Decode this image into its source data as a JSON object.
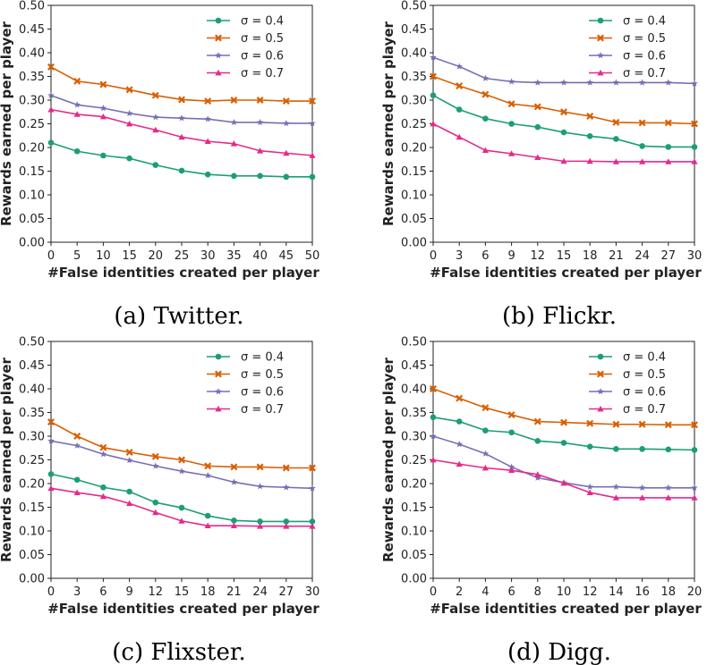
{
  "chart_data": [
    {
      "type": "line",
      "caption": "(a) Twitter.",
      "xlabel": "#False identities created per player",
      "ylabel": "Rewards earned per player",
      "x": [
        0,
        5,
        10,
        15,
        20,
        25,
        30,
        35,
        40,
        45,
        50
      ],
      "xticks": [
        0,
        5,
        10,
        15,
        20,
        25,
        30,
        35,
        40,
        45,
        50
      ],
      "xlim": [
        0,
        50
      ],
      "ylim": [
        0,
        0.5
      ],
      "yticks": [
        "0.00",
        "0.05",
        "0.10",
        "0.15",
        "0.20",
        "0.25",
        "0.30",
        "0.35",
        "0.40",
        "0.45",
        "0.50"
      ],
      "legend_position": "top-right",
      "series": [
        {
          "name": "σ = 0.4",
          "values": [
            0.21,
            0.192,
            0.183,
            0.177,
            0.163,
            0.151,
            0.143,
            0.14,
            0.14,
            0.138,
            0.138
          ]
        },
        {
          "name": "σ = 0.5",
          "values": [
            0.37,
            0.34,
            0.333,
            0.322,
            0.31,
            0.301,
            0.298,
            0.3,
            0.3,
            0.298,
            0.298
          ]
        },
        {
          "name": "σ = 0.6",
          "values": [
            0.31,
            0.29,
            0.283,
            0.272,
            0.264,
            0.262,
            0.26,
            0.253,
            0.253,
            0.251,
            0.251
          ]
        },
        {
          "name": "σ = 0.7",
          "values": [
            0.28,
            0.27,
            0.265,
            0.25,
            0.237,
            0.222,
            0.213,
            0.208,
            0.193,
            0.188,
            0.183
          ]
        }
      ]
    },
    {
      "type": "line",
      "caption": "(b) Flickr.",
      "xlabel": "#False identities created per player",
      "ylabel": "Rewards earned per player",
      "x": [
        0,
        3,
        6,
        9,
        12,
        15,
        18,
        21,
        24,
        27,
        30
      ],
      "xticks": [
        0,
        3,
        6,
        9,
        12,
        15,
        18,
        21,
        24,
        27,
        30
      ],
      "xlim": [
        0,
        30
      ],
      "ylim": [
        0,
        0.5
      ],
      "yticks": [
        "0.00",
        "0.05",
        "0.10",
        "0.15",
        "0.20",
        "0.25",
        "0.30",
        "0.35",
        "0.40",
        "0.45",
        "0.50"
      ],
      "legend_position": "top-right",
      "series": [
        {
          "name": "σ = 0.4",
          "values": [
            0.31,
            0.28,
            0.261,
            0.25,
            0.243,
            0.232,
            0.224,
            0.218,
            0.203,
            0.201,
            0.201
          ]
        },
        {
          "name": "σ = 0.5",
          "values": [
            0.35,
            0.33,
            0.312,
            0.292,
            0.286,
            0.275,
            0.266,
            0.253,
            0.252,
            0.252,
            0.25
          ]
        },
        {
          "name": "σ = 0.6",
          "values": [
            0.39,
            0.371,
            0.346,
            0.339,
            0.337,
            0.337,
            0.337,
            0.337,
            0.337,
            0.337,
            0.335
          ]
        },
        {
          "name": "σ = 0.7",
          "values": [
            0.25,
            0.222,
            0.194,
            0.187,
            0.179,
            0.171,
            0.171,
            0.17,
            0.17,
            0.17,
            0.17
          ]
        }
      ]
    },
    {
      "type": "line",
      "caption": "(c) Flixster.",
      "xlabel": "#False identities created per player",
      "ylabel": "Rewards earned per player",
      "x": [
        0,
        3,
        6,
        9,
        12,
        15,
        18,
        21,
        24,
        27,
        30
      ],
      "xticks": [
        0,
        3,
        6,
        9,
        12,
        15,
        18,
        21,
        24,
        27,
        30
      ],
      "xlim": [
        0,
        30
      ],
      "ylim": [
        0,
        0.5
      ],
      "yticks": [
        "0.00",
        "0.05",
        "0.10",
        "0.15",
        "0.20",
        "0.25",
        "0.30",
        "0.35",
        "0.40",
        "0.45",
        "0.50"
      ],
      "legend_position": "top-right",
      "series": [
        {
          "name": "σ = 0.4",
          "values": [
            0.22,
            0.208,
            0.192,
            0.183,
            0.16,
            0.149,
            0.132,
            0.122,
            0.12,
            0.12,
            0.12
          ]
        },
        {
          "name": "σ = 0.5",
          "values": [
            0.33,
            0.3,
            0.276,
            0.266,
            0.257,
            0.25,
            0.237,
            0.235,
            0.235,
            0.233,
            0.233
          ]
        },
        {
          "name": "σ = 0.6",
          "values": [
            0.29,
            0.28,
            0.262,
            0.249,
            0.237,
            0.226,
            0.217,
            0.203,
            0.194,
            0.192,
            0.19
          ]
        },
        {
          "name": "σ = 0.7",
          "values": [
            0.19,
            0.181,
            0.173,
            0.158,
            0.139,
            0.121,
            0.111,
            0.111,
            0.11,
            0.11,
            0.11
          ]
        }
      ]
    },
    {
      "type": "line",
      "caption": "(d) Digg.",
      "xlabel": "#False identities created per player",
      "ylabel": "Rewards earned per player",
      "x": [
        0,
        2,
        4,
        6,
        8,
        10,
        12,
        14,
        16,
        18,
        20
      ],
      "xticks": [
        0,
        2,
        4,
        6,
        8,
        10,
        12,
        14,
        16,
        18,
        20
      ],
      "xlim": [
        0,
        20
      ],
      "ylim": [
        0,
        0.5
      ],
      "yticks": [
        "0.00",
        "0.05",
        "0.10",
        "0.15",
        "0.20",
        "0.25",
        "0.30",
        "0.35",
        "0.40",
        "0.45",
        "0.50"
      ],
      "legend_position": "top-right",
      "series": [
        {
          "name": "σ = 0.4",
          "values": [
            0.34,
            0.331,
            0.312,
            0.308,
            0.29,
            0.286,
            0.278,
            0.273,
            0.273,
            0.272,
            0.271
          ]
        },
        {
          "name": "σ = 0.5",
          "values": [
            0.4,
            0.38,
            0.36,
            0.345,
            0.331,
            0.329,
            0.327,
            0.325,
            0.325,
            0.324,
            0.324
          ]
        },
        {
          "name": "σ = 0.6",
          "values": [
            0.3,
            0.283,
            0.263,
            0.235,
            0.212,
            0.202,
            0.193,
            0.193,
            0.191,
            0.191,
            0.191
          ]
        },
        {
          "name": "σ = 0.7",
          "values": [
            0.25,
            0.241,
            0.233,
            0.228,
            0.219,
            0.201,
            0.181,
            0.17,
            0.17,
            0.17,
            0.17
          ]
        }
      ]
    }
  ],
  "series_styles": [
    {
      "color": "#1b9e77",
      "marker": "circle"
    },
    {
      "color": "#d95f02",
      "marker": "x"
    },
    {
      "color": "#7570b3",
      "marker": "star"
    },
    {
      "color": "#e7298a",
      "marker": "triangle"
    }
  ],
  "colors": {
    "axis": "#222222",
    "text": "#222222"
  }
}
